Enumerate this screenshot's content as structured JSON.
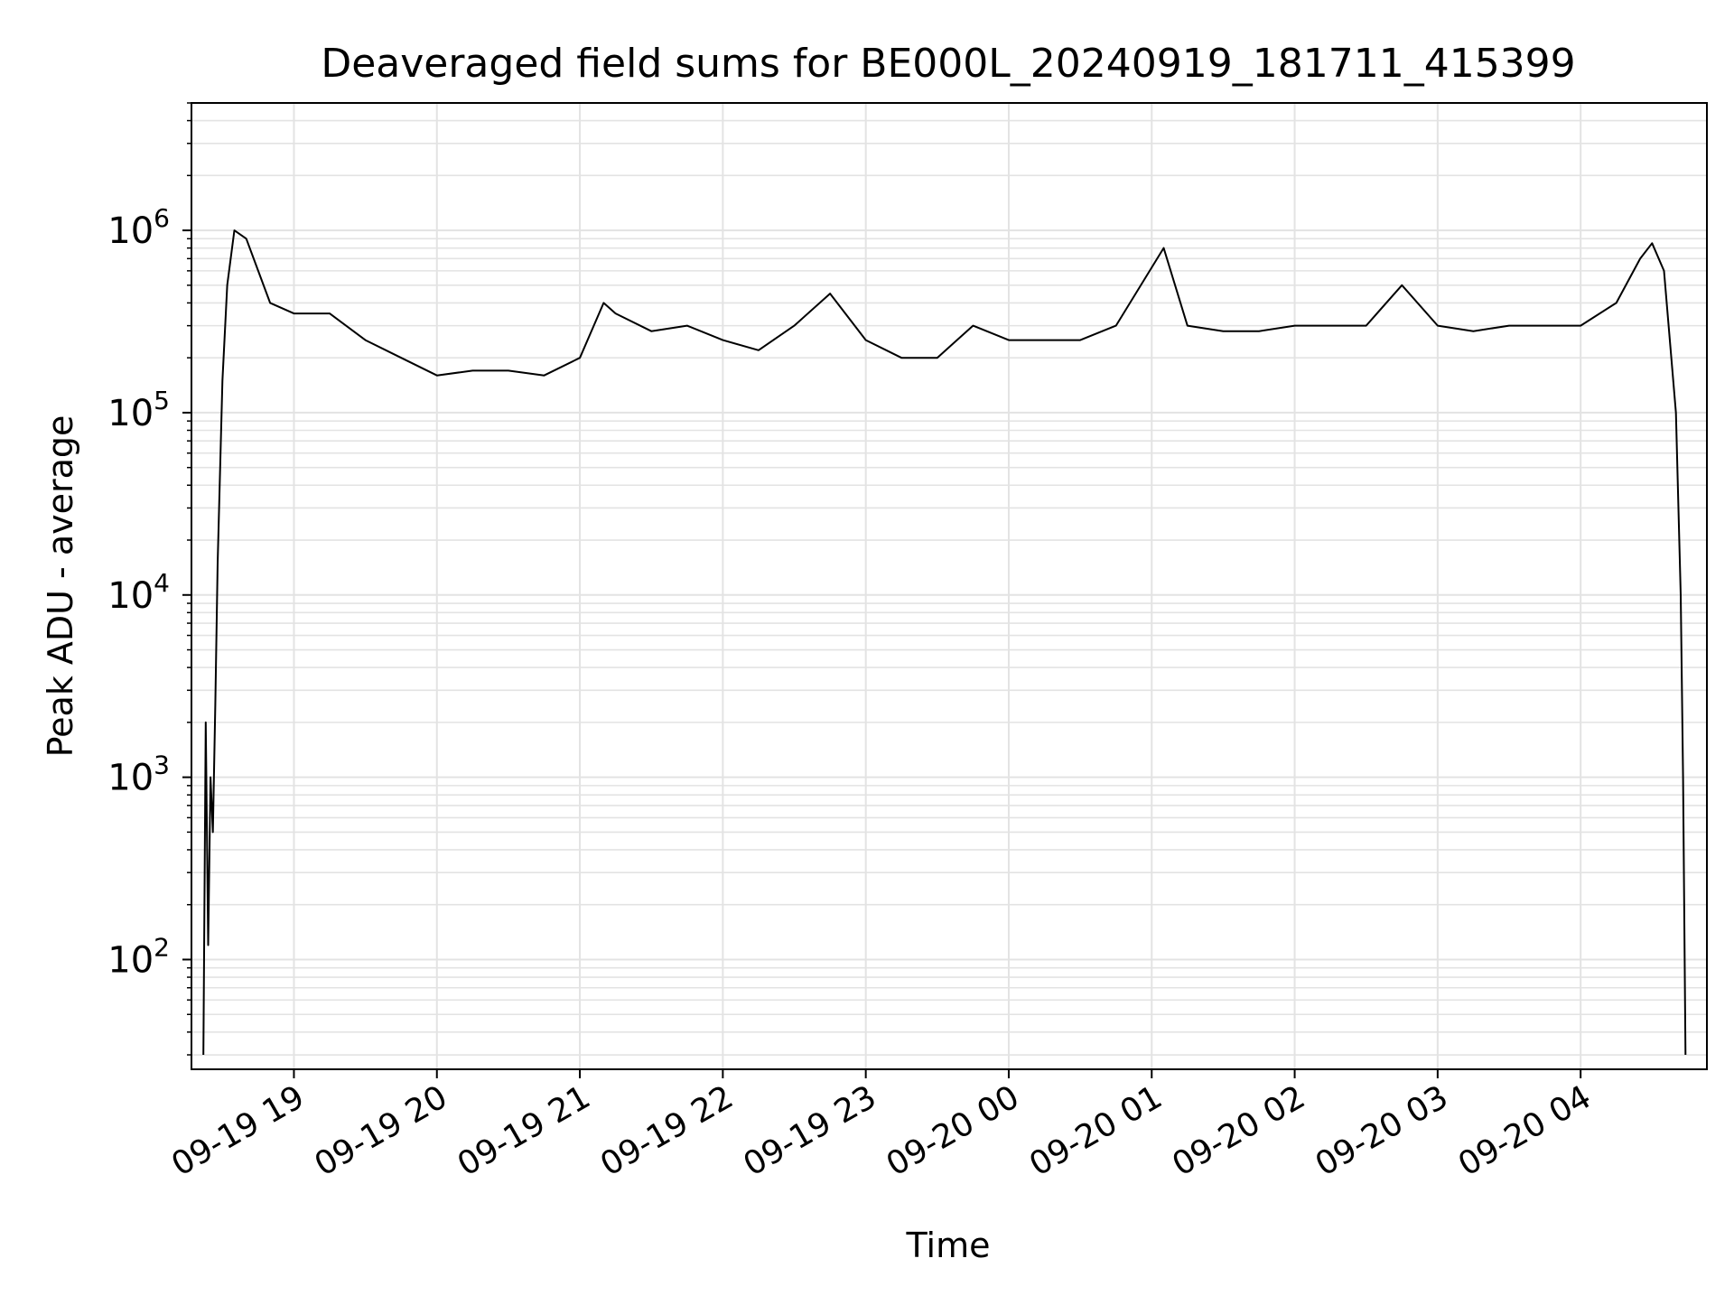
{
  "chart_data": {
    "type": "line",
    "title": "Deaveraged field sums for BE000L_20240919_181711_415399",
    "xlabel": "Time",
    "ylabel": "Peak ADU - average",
    "yscale": "log",
    "ylim": [
      25,
      5000000
    ],
    "xlim": [
      "2024-09-19 18:17",
      "2024-09-20 04:53"
    ],
    "grid": true,
    "line_color": "#000000",
    "xticks": [
      {
        "t": "2024-09-19 19:00",
        "label": "09-19 19"
      },
      {
        "t": "2024-09-19 20:00",
        "label": "09-19 20"
      },
      {
        "t": "2024-09-19 21:00",
        "label": "09-19 21"
      },
      {
        "t": "2024-09-19 22:00",
        "label": "09-19 22"
      },
      {
        "t": "2024-09-19 23:00",
        "label": "09-19 23"
      },
      {
        "t": "2024-09-20 00:00",
        "label": "09-20 00"
      },
      {
        "t": "2024-09-20 01:00",
        "label": "09-20 01"
      },
      {
        "t": "2024-09-20 02:00",
        "label": "09-20 02"
      },
      {
        "t": "2024-09-20 03:00",
        "label": "09-20 03"
      },
      {
        "t": "2024-09-20 04:00",
        "label": "09-20 04"
      }
    ],
    "yticks": [
      {
        "value": 100,
        "base": "10",
        "exp": "2"
      },
      {
        "value": 1000,
        "base": "10",
        "exp": "3"
      },
      {
        "value": 10000,
        "base": "10",
        "exp": "4"
      },
      {
        "value": 100000,
        "base": "10",
        "exp": "5"
      },
      {
        "value": 1000000,
        "base": "10",
        "exp": "6"
      }
    ],
    "series": [
      {
        "values": [
          [
            "2024-09-19 18:22",
            30
          ],
          [
            "2024-09-19 18:23",
            2000
          ],
          [
            "2024-09-19 18:24",
            120
          ],
          [
            "2024-09-19 18:25",
            1000
          ],
          [
            "2024-09-19 18:26",
            500
          ],
          [
            "2024-09-19 18:27",
            2500
          ],
          [
            "2024-09-19 18:28",
            15000
          ],
          [
            "2024-09-19 18:30",
            150000
          ],
          [
            "2024-09-19 18:32",
            500000
          ],
          [
            "2024-09-19 18:35",
            1000000
          ],
          [
            "2024-09-19 18:40",
            900000
          ],
          [
            "2024-09-19 18:45",
            600000
          ],
          [
            "2024-09-19 18:50",
            400000
          ],
          [
            "2024-09-19 19:00",
            350000
          ],
          [
            "2024-09-19 19:15",
            350000
          ],
          [
            "2024-09-19 19:30",
            250000
          ],
          [
            "2024-09-19 19:45",
            200000
          ],
          [
            "2024-09-19 20:00",
            160000
          ],
          [
            "2024-09-19 20:15",
            170000
          ],
          [
            "2024-09-19 20:30",
            170000
          ],
          [
            "2024-09-19 20:45",
            160000
          ],
          [
            "2024-09-19 21:00",
            200000
          ],
          [
            "2024-09-19 21:10",
            400000
          ],
          [
            "2024-09-19 21:15",
            350000
          ],
          [
            "2024-09-19 21:30",
            280000
          ],
          [
            "2024-09-19 21:45",
            300000
          ],
          [
            "2024-09-19 22:00",
            250000
          ],
          [
            "2024-09-19 22:15",
            220000
          ],
          [
            "2024-09-19 22:30",
            300000
          ],
          [
            "2024-09-19 22:45",
            450000
          ],
          [
            "2024-09-19 23:00",
            250000
          ],
          [
            "2024-09-19 23:15",
            200000
          ],
          [
            "2024-09-19 23:30",
            200000
          ],
          [
            "2024-09-19 23:45",
            300000
          ],
          [
            "2024-09-20 00:00",
            250000
          ],
          [
            "2024-09-20 00:15",
            250000
          ],
          [
            "2024-09-20 00:30",
            250000
          ],
          [
            "2024-09-20 00:45",
            300000
          ],
          [
            "2024-09-20 01:05",
            800000
          ],
          [
            "2024-09-20 01:15",
            300000
          ],
          [
            "2024-09-20 01:30",
            280000
          ],
          [
            "2024-09-20 01:45",
            280000
          ],
          [
            "2024-09-20 02:00",
            300000
          ],
          [
            "2024-09-20 02:15",
            300000
          ],
          [
            "2024-09-20 02:30",
            300000
          ],
          [
            "2024-09-20 02:45",
            500000
          ],
          [
            "2024-09-20 03:00",
            300000
          ],
          [
            "2024-09-20 03:15",
            280000
          ],
          [
            "2024-09-20 03:30",
            300000
          ],
          [
            "2024-09-20 03:45",
            300000
          ],
          [
            "2024-09-20 04:00",
            300000
          ],
          [
            "2024-09-20 04:15",
            400000
          ],
          [
            "2024-09-20 04:25",
            700000
          ],
          [
            "2024-09-20 04:30",
            850000
          ],
          [
            "2024-09-20 04:35",
            600000
          ],
          [
            "2024-09-20 04:40",
            100000
          ],
          [
            "2024-09-20 04:42",
            10000
          ],
          [
            "2024-09-20 04:43",
            1000
          ],
          [
            "2024-09-20 04:44",
            30
          ]
        ]
      }
    ]
  }
}
